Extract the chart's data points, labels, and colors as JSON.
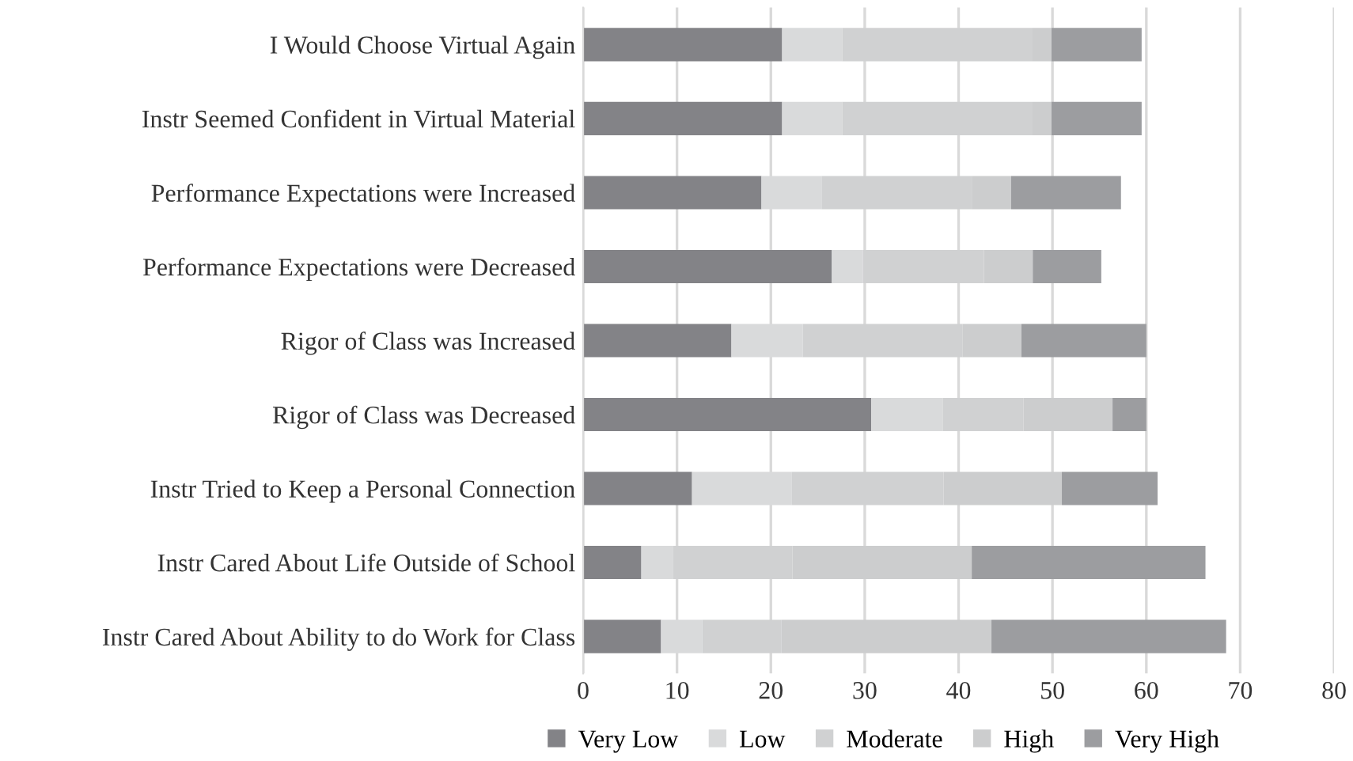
{
  "chart_data": {
    "type": "bar",
    "orientation": "horizontal",
    "stacked": true,
    "categories": [
      "I Would Choose Virtual Again",
      "Instr Seemed Confident in Virtual Material",
      "Performance Expectations were Increased",
      "Performance Expectations were Decreased",
      "Rigor of Class was Increased",
      "Rigor of Class was Decreased",
      "Instr Tried to Keep a Personal Connection",
      "Instr Cared About Life Outside of School",
      "Instr Cared About Ability to do Work for Class"
    ],
    "series": [
      {
        "name": "Very Low",
        "color": "#838387",
        "values": [
          21.2,
          21.2,
          19.0,
          26.5,
          15.8,
          30.7,
          11.6,
          6.2,
          8.3
        ]
      },
      {
        "name": "Low",
        "color": "#d9dadb",
        "values": [
          6.4,
          6.4,
          6.4,
          3.3,
          7.6,
          7.6,
          10.6,
          3.4,
          4.4
        ]
      },
      {
        "name": "Moderate",
        "color": "#d0d1d2",
        "values": [
          20.2,
          20.2,
          16.0,
          12.9,
          17.0,
          8.6,
          16.2,
          12.7,
          8.4
        ]
      },
      {
        "name": "High",
        "color": "#cccdce",
        "values": [
          2.1,
          2.1,
          4.2,
          5.2,
          6.3,
          9.5,
          12.6,
          19.1,
          22.4
        ]
      },
      {
        "name": "Very High",
        "color": "#9c9da0",
        "values": [
          9.6,
          9.6,
          11.7,
          7.3,
          13.3,
          3.6,
          10.2,
          24.9,
          25.0
        ]
      }
    ],
    "xlim": [
      0,
      80
    ],
    "xticks": [
      0,
      10,
      20,
      30,
      40,
      50,
      60,
      70,
      80
    ],
    "grid": "x",
    "legend": "bottom"
  }
}
